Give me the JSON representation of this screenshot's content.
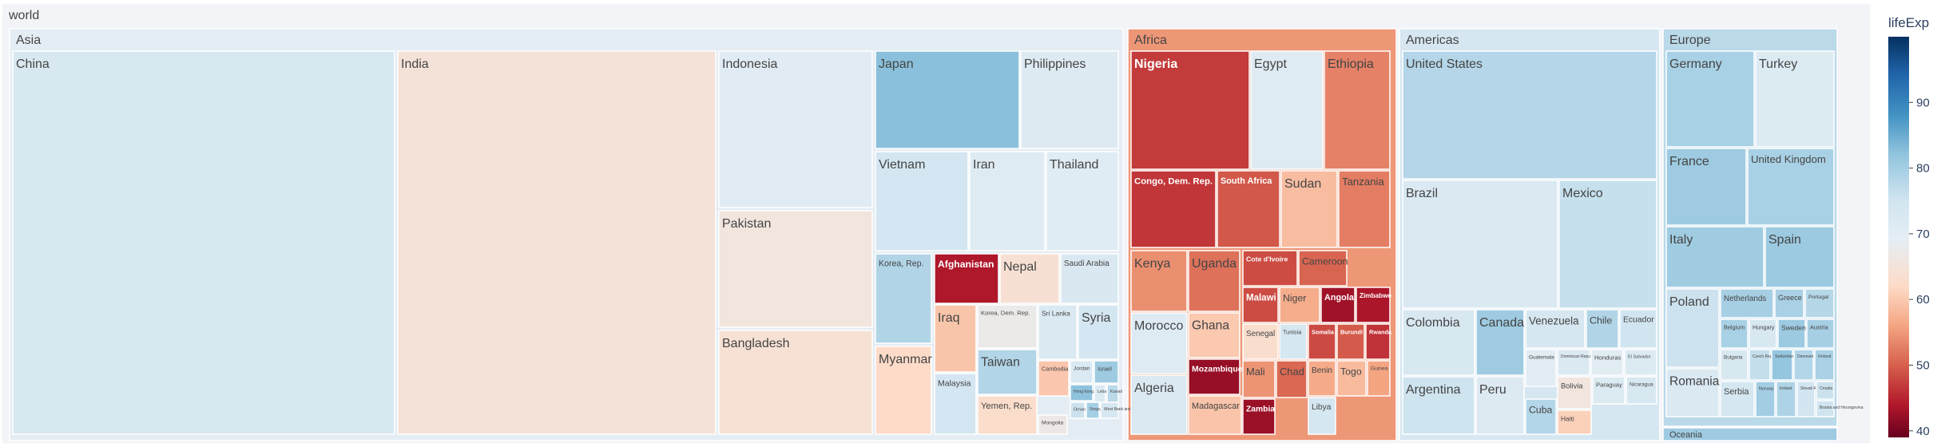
{
  "chart_data": {
    "type": "treemap",
    "root": "world",
    "colorbar": {
      "title": "lifeExp",
      "min": 39,
      "max": 100,
      "ticks": [
        40,
        50,
        60,
        70,
        80,
        90
      ]
    },
    "color_stops": [
      {
        "v": 39,
        "c": "#67001f"
      },
      {
        "v": 44,
        "c": "#b2182b"
      },
      {
        "v": 50,
        "c": "#d6604d"
      },
      {
        "v": 56,
        "c": "#f4a582"
      },
      {
        "v": 62,
        "c": "#fddbc7"
      },
      {
        "v": 69,
        "c": "#e6eef4"
      },
      {
        "v": 75,
        "c": "#d1e5f0"
      },
      {
        "v": 82,
        "c": "#92c5de"
      },
      {
        "v": 88,
        "c": "#4393c3"
      },
      {
        "v": 94,
        "c": "#2166ac"
      },
      {
        "v": 100,
        "c": "#053061"
      }
    ],
    "continents": [
      {
        "name": "Asia",
        "lifeExp": 69.4,
        "countries": [
          {
            "name": "China",
            "lifeExp": 73.0
          },
          {
            "name": "India",
            "lifeExp": 64.7
          },
          {
            "name": "Indonesia",
            "lifeExp": 70.7
          },
          {
            "name": "Pakistan",
            "lifeExp": 65.5
          },
          {
            "name": "Bangladesh",
            "lifeExp": 64.1
          },
          {
            "name": "Japan",
            "lifeExp": 82.6
          },
          {
            "name": "Philippines",
            "lifeExp": 71.7
          },
          {
            "name": "Vietnam",
            "lifeExp": 74.2
          },
          {
            "name": "Iran",
            "lifeExp": 71.0
          },
          {
            "name": "Thailand",
            "lifeExp": 70.6
          },
          {
            "name": "Korea, Rep.",
            "lifeExp": 78.6
          },
          {
            "name": "Afghanistan",
            "lifeExp": 43.8
          },
          {
            "name": "Nepal",
            "lifeExp": 63.8
          },
          {
            "name": "Saudi Arabia",
            "lifeExp": 72.8
          },
          {
            "name": "Iraq",
            "lifeExp": 59.5
          },
          {
            "name": "Korea, Dem. Rep.",
            "lifeExp": 67.3
          },
          {
            "name": "Sri Lanka",
            "lifeExp": 72.4
          },
          {
            "name": "Syria",
            "lifeExp": 74.1
          },
          {
            "name": "Myanmar",
            "lifeExp": 62.1
          },
          {
            "name": "Taiwan",
            "lifeExp": 78.4
          },
          {
            "name": "Malaysia",
            "lifeExp": 74.2
          },
          {
            "name": "Yemen, Rep.",
            "lifeExp": 62.7
          },
          {
            "name": "Cambodia",
            "lifeExp": 59.7
          },
          {
            "name": "Jordan",
            "lifeExp": 72.5
          },
          {
            "name": "Israel",
            "lifeExp": 80.7
          },
          {
            "name": "Hong Kong, China",
            "lifeExp": 82.2
          },
          {
            "name": "Lebanon",
            "lifeExp": 72.0
          },
          {
            "name": "Kuwait",
            "lifeExp": 77.6
          },
          {
            "name": "Oman",
            "lifeExp": 75.6
          },
          {
            "name": "Singapore",
            "lifeExp": 80.0
          },
          {
            "name": "West Bank and Gaza",
            "lifeExp": 73.4
          },
          {
            "name": "Mongolia",
            "lifeExp": 66.8
          }
        ]
      },
      {
        "name": "Africa",
        "lifeExp": 54.8,
        "countries": [
          {
            "name": "Nigeria",
            "lifeExp": 46.9
          },
          {
            "name": "Egypt",
            "lifeExp": 71.3
          },
          {
            "name": "Ethiopia",
            "lifeExp": 52.9
          },
          {
            "name": "Congo, Dem. Rep.",
            "lifeExp": 46.5
          },
          {
            "name": "South Africa",
            "lifeExp": 49.3
          },
          {
            "name": "Sudan",
            "lifeExp": 58.6
          },
          {
            "name": "Tanzania",
            "lifeExp": 52.5
          },
          {
            "name": "Kenya",
            "lifeExp": 54.1
          },
          {
            "name": "Uganda",
            "lifeExp": 51.5
          },
          {
            "name": "Cote d'Ivoire",
            "lifeExp": 48.3
          },
          {
            "name": "Cameroon",
            "lifeExp": 50.4
          },
          {
            "name": "Madagascar",
            "lifeExp": 59.4
          },
          {
            "name": "Morocco",
            "lifeExp": 71.2
          },
          {
            "name": "Ghana",
            "lifeExp": 60.0
          },
          {
            "name": "Malawi",
            "lifeExp": 48.3
          },
          {
            "name": "Niger",
            "lifeExp": 56.9
          },
          {
            "name": "Angola",
            "lifeExp": 42.7
          },
          {
            "name": "Zimbabwe",
            "lifeExp": 43.5
          },
          {
            "name": "Senegal",
            "lifeExp": 63.1
          },
          {
            "name": "Tunisia",
            "lifeExp": 73.9
          },
          {
            "name": "Somalia",
            "lifeExp": 48.2
          },
          {
            "name": "Burundi",
            "lifeExp": 49.6
          },
          {
            "name": "Mozambique",
            "lifeExp": 42.1
          },
          {
            "name": "Mali",
            "lifeExp": 54.5
          },
          {
            "name": "Chad",
            "lifeExp": 50.7
          },
          {
            "name": "Benin",
            "lifeExp": 56.7
          },
          {
            "name": "Togo",
            "lifeExp": 58.4
          },
          {
            "name": "Guinea",
            "lifeExp": 56.0
          },
          {
            "name": "Zambia",
            "lifeExp": 42.4
          },
          {
            "name": "Rwanda",
            "lifeExp": 46.2
          },
          {
            "name": "Libya",
            "lifeExp": 74.0
          },
          {
            "name": "Algeria",
            "lifeExp": 72.3
          }
        ]
      },
      {
        "name": "Americas",
        "lifeExp": 73.6,
        "countries": [
          {
            "name": "United States",
            "lifeExp": 78.2
          },
          {
            "name": "Brazil",
            "lifeExp": 72.4
          },
          {
            "name": "Mexico",
            "lifeExp": 76.2
          },
          {
            "name": "Colombia",
            "lifeExp": 72.9
          },
          {
            "name": "Canada",
            "lifeExp": 80.7
          },
          {
            "name": "Venezuela",
            "lifeExp": 73.7
          },
          {
            "name": "Chile",
            "lifeExp": 78.6
          },
          {
            "name": "Ecuador",
            "lifeExp": 75.0
          },
          {
            "name": "Argentina",
            "lifeExp": 75.3
          },
          {
            "name": "Peru",
            "lifeExp": 71.4
          },
          {
            "name": "Guatemala",
            "lifeExp": 70.3
          },
          {
            "name": "Cuba",
            "lifeExp": 78.3
          },
          {
            "name": "Bolivia",
            "lifeExp": 65.6
          },
          {
            "name": "Haiti",
            "lifeExp": 60.9
          },
          {
            "name": "Dominican Republic",
            "lifeExp": 72.2
          },
          {
            "name": "Honduras",
            "lifeExp": 70.2
          },
          {
            "name": "El Salvador",
            "lifeExp": 71.9
          },
          {
            "name": "Paraguay",
            "lifeExp": 71.8
          },
          {
            "name": "Nicaragua",
            "lifeExp": 72.9
          }
        ]
      },
      {
        "name": "Europe",
        "lifeExp": 77.6,
        "countries": [
          {
            "name": "Germany",
            "lifeExp": 79.4
          },
          {
            "name": "Turkey",
            "lifeExp": 71.8
          },
          {
            "name": "France",
            "lifeExp": 80.7
          },
          {
            "name": "United Kingdom",
            "lifeExp": 79.4
          },
          {
            "name": "Italy",
            "lifeExp": 80.5
          },
          {
            "name": "Spain",
            "lifeExp": 80.9
          },
          {
            "name": "Poland",
            "lifeExp": 75.6
          },
          {
            "name": "Netherlands",
            "lifeExp": 79.8
          },
          {
            "name": "Greece",
            "lifeExp": 79.5
          },
          {
            "name": "Portugal",
            "lifeExp": 78.1
          },
          {
            "name": "Belgium",
            "lifeExp": 79.4
          },
          {
            "name": "Hungary",
            "lifeExp": 73.3
          },
          {
            "name": "Sweden",
            "lifeExp": 80.9
          },
          {
            "name": "Austria",
            "lifeExp": 79.8
          },
          {
            "name": "Romania",
            "lifeExp": 72.5
          },
          {
            "name": "Serbia",
            "lifeExp": 74.0
          },
          {
            "name": "Bulgaria",
            "lifeExp": 73.0
          },
          {
            "name": "Czech Republic",
            "lifeExp": 76.5
          },
          {
            "name": "Switzerland",
            "lifeExp": 81.7
          },
          {
            "name": "Denmark",
            "lifeExp": 78.3
          },
          {
            "name": "Finland",
            "lifeExp": 79.3
          },
          {
            "name": "Norway",
            "lifeExp": 80.2
          },
          {
            "name": "Ireland",
            "lifeExp": 78.9
          },
          {
            "name": "Slovak Republic",
            "lifeExp": 74.7
          },
          {
            "name": "Croatia",
            "lifeExp": 75.7
          },
          {
            "name": "Bosnia and Herzegovina",
            "lifeExp": 74.9
          }
        ]
      },
      {
        "name": "Oceania",
        "lifeExp": 80.7,
        "countries": []
      }
    ]
  }
}
